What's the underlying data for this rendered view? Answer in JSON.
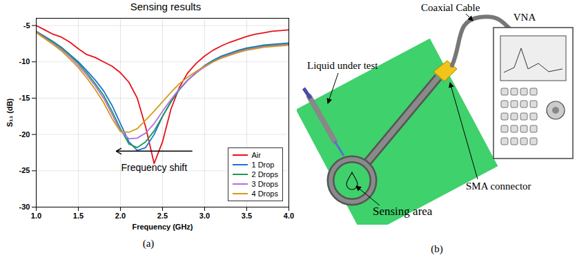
{
  "chart_data": {
    "type": "line",
    "title": "Sensing results",
    "x_label": "Frequency (GHz)",
    "y_label": "S₁₁ (dB)",
    "caption": "(a)",
    "x": [
      1.0,
      1.1,
      1.2,
      1.3,
      1.4,
      1.5,
      1.6,
      1.7,
      1.8,
      1.9,
      2.0,
      2.1,
      2.2,
      2.3,
      2.4,
      2.5,
      2.6,
      2.7,
      2.8,
      2.9,
      3.0,
      3.1,
      3.2,
      3.3,
      3.4,
      3.5,
      3.6,
      3.7,
      3.8,
      3.9,
      4.0
    ],
    "series": [
      {
        "name": "Air",
        "color": "#e8101a",
        "values": [
          -5,
          -5.6,
          -6.2,
          -6.6,
          -7.3,
          -8.2,
          -9,
          -9.4,
          -10,
          -10.6,
          -11.5,
          -12.8,
          -15,
          -19,
          -24,
          -21,
          -16.5,
          -13.5,
          -11.5,
          -10.2,
          -9.2,
          -8.4,
          -7.8,
          -7.3,
          -6.9,
          -6.5,
          -6.2,
          -6,
          -5.8,
          -5.7,
          -5.6
        ]
      },
      {
        "name": "1 Drop",
        "color": "#1f6fd6",
        "values": [
          -5.8,
          -6.5,
          -7.2,
          -8,
          -9,
          -10,
          -11.2,
          -12.5,
          -14,
          -16,
          -18.5,
          -21,
          -22.2,
          -21.8,
          -20,
          -17.5,
          -15.5,
          -13.8,
          -12.5,
          -11.5,
          -10.5,
          -9.8,
          -9.2,
          -8.8,
          -8.4,
          -8.1,
          -7.9,
          -7.7,
          -7.6,
          -7.5,
          -7.4
        ]
      },
      {
        "name": "2 Drops",
        "color": "#1a9a50",
        "values": [
          -5.8,
          -6.6,
          -7.3,
          -8.1,
          -9.1,
          -10.2,
          -11.5,
          -13,
          -14.6,
          -16.8,
          -19.2,
          -21.3,
          -21.8,
          -21,
          -19.5,
          -17.5,
          -15.5,
          -13.8,
          -12.5,
          -11.5,
          -10.6,
          -9.9,
          -9.3,
          -8.9,
          -8.5,
          -8.2,
          -8,
          -7.8,
          -7.7,
          -7.6,
          -7.5
        ]
      },
      {
        "name": "3 Drops",
        "color": "#b46ee0",
        "values": [
          -5.9,
          -6.7,
          -7.5,
          -8.3,
          -9.3,
          -10.5,
          -11.8,
          -13.3,
          -15,
          -17.2,
          -19.5,
          -20.6,
          -20.5,
          -19.8,
          -18.5,
          -16.8,
          -15.2,
          -13.7,
          -12.5,
          -11.5,
          -10.7,
          -10,
          -9.4,
          -9,
          -8.6,
          -8.3,
          -8.1,
          -7.9,
          -7.8,
          -7.7,
          -7.6
        ]
      },
      {
        "name": "4 Drops",
        "color": "#d49a1a",
        "values": [
          -6,
          -6.8,
          -7.6,
          -8.5,
          -9.6,
          -10.8,
          -12.2,
          -13.8,
          -15.6,
          -17.8,
          -19.6,
          -19.7,
          -19.2,
          -18,
          -16.8,
          -15.5,
          -14.2,
          -13,
          -12.1,
          -11.3,
          -10.6,
          -10,
          -9.5,
          -9.1,
          -8.7,
          -8.4,
          -8.2,
          -8,
          -7.9,
          -7.8,
          -7.7
        ]
      }
    ],
    "xlim": [
      1,
      4
    ],
    "xticks": [
      {
        "value": 1,
        "label": "1.0"
      },
      1.5,
      {
        "value": 2,
        "label": "2.0"
      },
      2.5,
      {
        "value": 3,
        "label": "3.0"
      },
      3.5,
      {
        "value": 4,
        "label": "4.0"
      }
    ],
    "ylim": [
      -30,
      -4
    ],
    "yticks": [
      -30,
      -25,
      -20,
      -15,
      -10,
      -5
    ],
    "grid": true,
    "legend": "lower right",
    "annotations": [
      {
        "text": "Frequency shift",
        "x": 2.4,
        "y": -24.6,
        "arrow_from": 2.85,
        "arrow_to": 1.95,
        "arrow_y": -22.3
      }
    ]
  },
  "diagram": {
    "caption": "(b)",
    "cable": "Coaxial Cable",
    "instrument": "VNA",
    "liquid": "Liquid under test",
    "connector": "SMA connector",
    "sensing_area": "Sensing area"
  }
}
